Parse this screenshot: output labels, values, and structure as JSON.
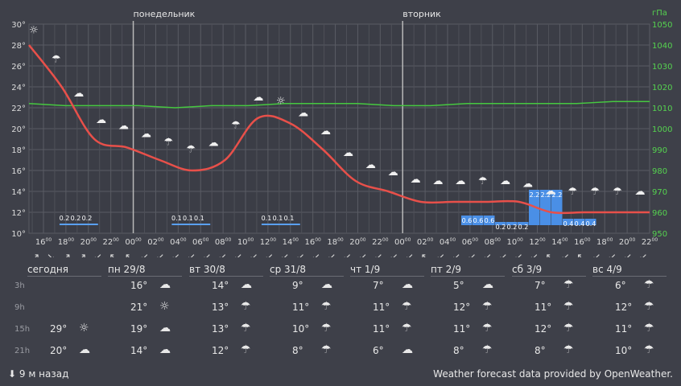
{
  "chart_data": {
    "type": "line",
    "day_labels": [
      "понедельник",
      "вторник"
    ],
    "x_labels": [
      "16",
      "18",
      "20",
      "22",
      "00",
      "02",
      "04",
      "06",
      "08",
      "10",
      "12",
      "14",
      "16",
      "18",
      "20",
      "22",
      "00",
      "02",
      "04",
      "06",
      "08",
      "10",
      "12",
      "14",
      "16",
      "18",
      "20",
      "22"
    ],
    "x_label_suffix": "00",
    "y_left_ticks": [
      "30°",
      "28°",
      "26°",
      "24°",
      "22°",
      "20°",
      "18°",
      "16°",
      "14°",
      "12°",
      "10°"
    ],
    "y_left_range": [
      10,
      30
    ],
    "y_right_label": "гПа",
    "y_right_ticks": [
      "1050",
      "1040",
      "1030",
      "1020",
      "1010",
      "1000",
      "990",
      "980",
      "970",
      "960",
      "950"
    ],
    "y_right_range": [
      950,
      1050
    ],
    "temperature": [
      28,
      24,
      19,
      18.2,
      17,
      16,
      17,
      21,
      20.5,
      18,
      15,
      14,
      13,
      13,
      13,
      13,
      12,
      12,
      12,
      12
    ],
    "pressure": [
      1012,
      1011,
      1011,
      1011,
      1010,
      1011,
      1011,
      1012,
      1012,
      1012,
      1011,
      1011,
      1012,
      1012,
      1012,
      1012,
      1013,
      1013
    ],
    "precip_groups": [
      {
        "label": "0.2 0.2 0.2",
        "start": 1,
        "end": 2.5
      },
      {
        "label": "0.1 0.1 0.1",
        "start": 6,
        "end": 7.5
      },
      {
        "label": "0.1 0.1 0.1",
        "start": 10,
        "end": 11.5
      }
    ],
    "precip_bars": [
      {
        "i": 19,
        "v": 0.6,
        "label": "0.6"
      },
      {
        "i": 20,
        "v": 0.6,
        "label": "0.6"
      },
      {
        "i": 21,
        "v": 0.6,
        "label": "0.6"
      },
      {
        "i": 22,
        "v": 0.2,
        "label": "0.2"
      },
      {
        "i": 23,
        "v": 0.2,
        "label": "0.2"
      },
      {
        "i": 24,
        "v": 0.2,
        "label": "0.2"
      },
      {
        "i": 25,
        "v": 2.2,
        "label": "2.2"
      },
      {
        "i": 26,
        "v": 2.2,
        "label": "2.2"
      },
      {
        "i": 27,
        "v": 2.2,
        "label": "2.2"
      },
      {
        "i": 28,
        "v": 0.4,
        "label": "0.4"
      },
      {
        "i": 29,
        "v": 0.4,
        "label": "0.4"
      },
      {
        "i": 30,
        "v": 0.4,
        "label": "0.4"
      }
    ],
    "wind_arrows": [
      "↗",
      "↘",
      "↗",
      "↗",
      "↙",
      "↖",
      "↖",
      "↙",
      "↙",
      "↙",
      "↙",
      "↙",
      "↙",
      "↙",
      "↙",
      "↙",
      "↙",
      "↙",
      "↙",
      "↙",
      "↙",
      "↙",
      "↙",
      "↙",
      "↙",
      "↖",
      "↙",
      "↙",
      "↙",
      "↙",
      "↙",
      "↙",
      "↙",
      "↖",
      "↙",
      "↖",
      "↙",
      "↙",
      "↙",
      "↙"
    ]
  },
  "week": {
    "days": [
      "сегодня",
      "пн 29/8",
      "вт 30/8",
      "ср 31/8",
      "чт 1/9",
      "пт 2/9",
      "сб 3/9",
      "вс 4/9"
    ],
    "row_labels": [
      "3h",
      "9h",
      "15h",
      "21h"
    ],
    "rows": [
      [
        null,
        {
          "t": "16°",
          "i": "cloudy"
        },
        {
          "t": "14°",
          "i": "cloudy"
        },
        {
          "t": "9°",
          "i": "cloudy"
        },
        {
          "t": "7°",
          "i": "cloudy"
        },
        {
          "t": "5°",
          "i": "cloudy"
        },
        {
          "t": "7°",
          "i": "rain"
        },
        {
          "t": "6°",
          "i": "rain"
        }
      ],
      [
        null,
        {
          "t": "21°",
          "i": "sun"
        },
        {
          "t": "13°",
          "i": "rain"
        },
        {
          "t": "11°",
          "i": "rain"
        },
        {
          "t": "11°",
          "i": "rain"
        },
        {
          "t": "12°",
          "i": "rain"
        },
        {
          "t": "11°",
          "i": "rain"
        },
        {
          "t": "12°",
          "i": "rain"
        }
      ],
      [
        {
          "t": "29°",
          "i": "sun"
        },
        {
          "t": "19°",
          "i": "cloudy"
        },
        {
          "t": "13°",
          "i": "rain"
        },
        {
          "t": "10°",
          "i": "rain"
        },
        {
          "t": "11°",
          "i": "rain"
        },
        {
          "t": "11°",
          "i": "rain"
        },
        {
          "t": "12°",
          "i": "rain"
        },
        {
          "t": "11°",
          "i": "rain"
        }
      ],
      [
        {
          "t": "20°",
          "i": "cloudy"
        },
        {
          "t": "14°",
          "i": "cloudy"
        },
        {
          "t": "12°",
          "i": "rain"
        },
        {
          "t": "8°",
          "i": "rain"
        },
        {
          "t": "6°",
          "i": "cloudy"
        },
        {
          "t": "8°",
          "i": "rain"
        },
        {
          "t": "8°",
          "i": "rain"
        },
        {
          "t": "10°",
          "i": "rain"
        }
      ]
    ]
  },
  "footer": {
    "updated": "⬇ 9 м назад",
    "credit": "Weather forecast data provided by OpenWeather."
  }
}
